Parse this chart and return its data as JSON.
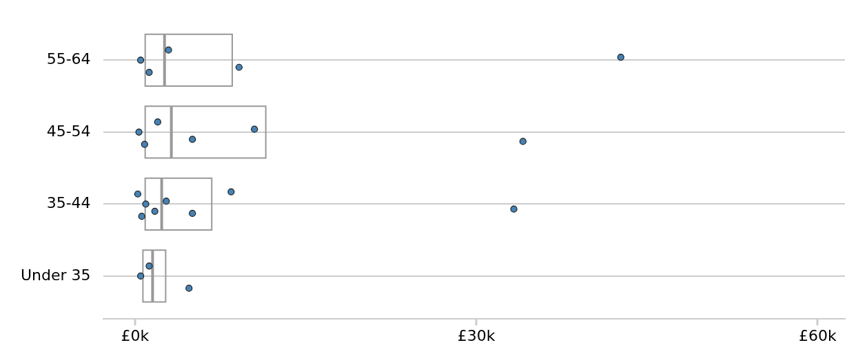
{
  "chart_data": {
    "type": "box",
    "orientation": "horizontal",
    "categories": [
      "55-64",
      "45-54",
      "35-44",
      "Under 35"
    ],
    "xlim": [
      -2.8,
      62.4
    ],
    "xticks": [
      {
        "value": 0,
        "label": "£0k"
      },
      {
        "value": 30,
        "label": "£30k"
      },
      {
        "value": 60,
        "label": "£60k"
      }
    ],
    "grid": "y",
    "legend": false,
    "marker": "circle",
    "series": [
      {
        "type": "box",
        "color": "#999999",
        "boxes": [
          {
            "low": 0.9,
            "q1": 0.9,
            "median": 2.6,
            "q3": 8.55,
            "high": 8.55
          },
          {
            "low": 0.9,
            "q1": 0.9,
            "median": 3.2,
            "q3": 11.5,
            "high": 11.5
          },
          {
            "low": 0.9,
            "q1": 0.9,
            "median": 2.35,
            "q3": 6.75,
            "high": 6.75
          },
          {
            "low": 0.7,
            "q1": 0.7,
            "median": 1.55,
            "q3": 2.7,
            "high": 2.7
          }
        ]
      },
      {
        "type": "scatter",
        "color": "#4682b4",
        "x": [
          "55-64",
          "55-64",
          "55-64",
          "55-64",
          "55-64",
          "45-54",
          "45-54",
          "45-54",
          "45-54",
          "45-54",
          "45-54",
          "35-44",
          "35-44",
          "35-44",
          "35-44",
          "35-44",
          "35-44",
          "35-44",
          "35-44",
          "Under 35",
          "Under 35",
          "Under 35"
        ],
        "values": [
          0.5,
          2.95,
          1.25,
          9.15,
          42.7,
          0.35,
          2.0,
          0.85,
          5.05,
          10.5,
          34.1,
          0.95,
          0.25,
          0.6,
          1.75,
          2.75,
          5.05,
          8.45,
          33.3,
          0.5,
          1.25,
          4.75
        ]
      }
    ]
  }
}
